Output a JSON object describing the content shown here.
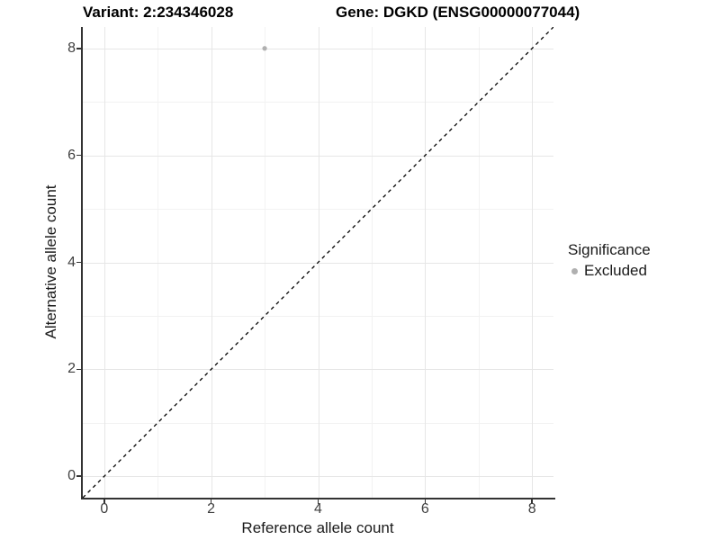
{
  "chart_data": {
    "type": "scatter",
    "titles": {
      "variant": "Variant: 2:234346028",
      "gene": "Gene: DGKD (ENSG00000077044)"
    },
    "xlabel": "Reference allele count",
    "ylabel": "Alternative allele count",
    "xlim": [
      -0.4,
      8.4
    ],
    "ylim": [
      -0.4,
      8.4
    ],
    "xticks": [
      0,
      2,
      4,
      6,
      8
    ],
    "yticks": [
      0,
      2,
      4,
      6,
      8
    ],
    "xminor": [
      1,
      3,
      5,
      7
    ],
    "yminor": [
      1,
      3,
      5,
      7
    ],
    "grid": "on",
    "points": [
      {
        "x": 3,
        "y": 8,
        "series": "Excluded"
      }
    ],
    "reference_line": {
      "type": "identity",
      "equation": "y = x",
      "style": "dashed",
      "color": "#000000"
    },
    "legend": {
      "title": "Significance",
      "position": "right",
      "entries": [
        {
          "label": "Excluded",
          "color": "#b0b0b0",
          "marker": "circle"
        }
      ]
    }
  },
  "colors": {
    "background": "#ffffff",
    "grid_major": "#e6e6e6",
    "grid_minor": "#f2f2f2",
    "axis_line": "#333333",
    "tick_text": "#404040",
    "title_text": "#000000",
    "point": "#b0b0b0",
    "dashed_line": "#000000"
  }
}
